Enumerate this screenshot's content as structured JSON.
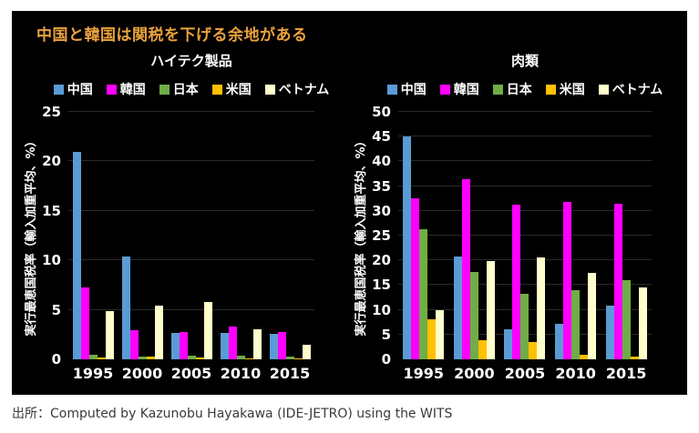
{
  "main_title": {
    "text": "中国と韓国は関税を下げる余地がある",
    "color": "#EAA23C"
  },
  "footer": {
    "text": "出所：Computed by Kazunobu Hayakawa (IDE-JETRO) using the WITS"
  },
  "panel_background": "#000000",
  "chart_data": [
    {
      "type": "bar",
      "title": "ハイテク製品",
      "ylabel": "実行最恵国税率（輸入加重平均、%）",
      "xlabel": "",
      "categories": [
        "1995",
        "2000",
        "2005",
        "2010",
        "2015"
      ],
      "series": [
        {
          "name": "中国",
          "color": "#5B9BD5",
          "values": [
            21.0,
            10.4,
            2.7,
            2.7,
            2.6
          ]
        },
        {
          "name": "韓国",
          "color": "#FF00FF",
          "values": [
            7.3,
            2.9,
            2.8,
            3.3,
            2.8
          ]
        },
        {
          "name": "日本",
          "color": "#70AD47",
          "values": [
            0.5,
            0.3,
            0.4,
            0.4,
            0.3
          ]
        },
        {
          "name": "米国",
          "color": "#FFC000",
          "values": [
            0.2,
            0.3,
            0.15,
            0.05,
            0.05
          ]
        },
        {
          "name": "ベトナム",
          "color": "#FFFFCC",
          "values": [
            4.9,
            5.4,
            5.8,
            3.0,
            1.5
          ]
        }
      ],
      "ylim": [
        0,
        25
      ],
      "ytick_step": 5,
      "grid": true,
      "legend_position": "top"
    },
    {
      "type": "bar",
      "title": "肉類",
      "ylabel": "実行最恵国税率（輸入加重平均、%）",
      "xlabel": "",
      "categories": [
        "1995",
        "2000",
        "2005",
        "2010",
        "2015"
      ],
      "series": [
        {
          "name": "中国",
          "color": "#5B9BD5",
          "values": [
            45.0,
            20.8,
            6.0,
            7.2,
            10.8
          ]
        },
        {
          "name": "韓国",
          "color": "#FF00FF",
          "values": [
            32.6,
            36.4,
            31.2,
            31.8,
            31.5
          ]
        },
        {
          "name": "日本",
          "color": "#70AD47",
          "values": [
            26.2,
            17.7,
            13.2,
            13.9,
            16.0
          ]
        },
        {
          "name": "米国",
          "color": "#FFC000",
          "values": [
            8.0,
            3.9,
            3.5,
            0.9,
            0.6
          ]
        },
        {
          "name": "ベトナム",
          "color": "#FFFFCC",
          "values": [
            10.0,
            19.9,
            20.5,
            17.5,
            14.6
          ]
        }
      ],
      "ylim": [
        0,
        50
      ],
      "ytick_step": 5,
      "grid": true,
      "legend_position": "top"
    }
  ]
}
